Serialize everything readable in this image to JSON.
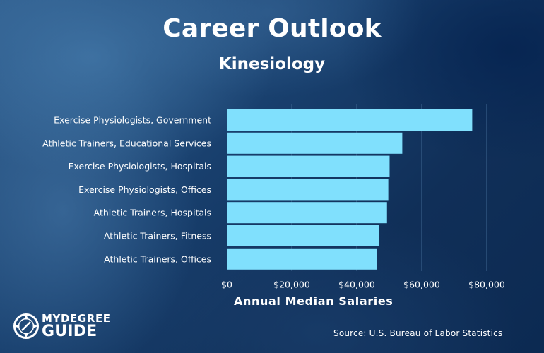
{
  "header": {
    "title": "Career Outlook",
    "subtitle": "Kinesiology"
  },
  "chart_data": {
    "type": "bar",
    "orientation": "horizontal",
    "title": "Career Outlook",
    "subtitle": "Kinesiology",
    "xlabel": "Annual Median Salaries",
    "ylabel": "",
    "xlim": [
      0,
      80000
    ],
    "grid": true,
    "legend": "none",
    "categories": [
      "Exercise Physiologists, Government",
      "Athletic Trainers, Educational Services",
      "Exercise Physiologists, Hospitals",
      "Exercise Physiologists, Offices",
      "Athletic Trainers, Hospitals",
      "Athletic Trainers, Fitness",
      "Athletic Trainers, Offices"
    ],
    "values": [
      75520,
      54000,
      50100,
      49700,
      49300,
      46900,
      46300
    ],
    "x_ticks": [
      0,
      20000,
      40000,
      60000,
      80000
    ],
    "x_tick_labels": [
      "$0",
      "$20,000",
      "$40,000",
      "$60,000",
      "$80,000"
    ],
    "colors": {
      "bar": "#80e0fd",
      "text": "#ffffff",
      "grid": "#3e6691"
    }
  },
  "footer": {
    "source": "Source: U.S. Bureau of Labor Statistics",
    "brand_line_1": "MYDEGREE",
    "brand_line_2": "GUIDE",
    "brand_icon": "compass-icon"
  }
}
